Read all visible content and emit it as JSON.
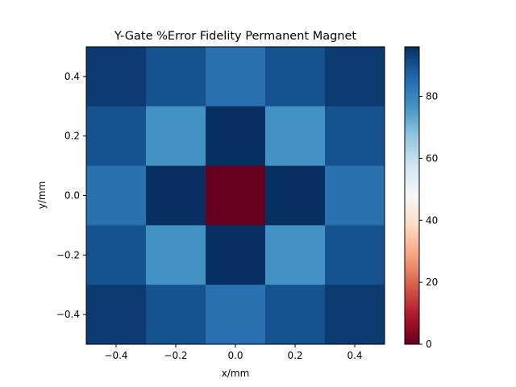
{
  "chart_data": {
    "type": "heatmap",
    "title": "Y-Gate %Error Fidelity Permanent Magnet",
    "xlabel": "x/mm",
    "ylabel": "y/mm",
    "x": [
      -0.4,
      -0.2,
      0.0,
      0.2,
      0.4
    ],
    "y": [
      -0.4,
      -0.2,
      0.0,
      0.2,
      0.4
    ],
    "xlim": [
      -0.5,
      0.5
    ],
    "ylim": [
      0.5,
      -0.5
    ],
    "xticks": [
      "−0.4",
      "−0.2",
      "0.0",
      "0.2",
      "0.4"
    ],
    "yticks": [
      "−0.4",
      "−0.2",
      "0.0",
      "0.2",
      "0.4"
    ],
    "values": [
      [
        94,
        90,
        84,
        90,
        94
      ],
      [
        90,
        77,
        96,
        77,
        90
      ],
      [
        84,
        96,
        0,
        96,
        84
      ],
      [
        90,
        77,
        96,
        77,
        90
      ],
      [
        94,
        90,
        84,
        90,
        94
      ]
    ],
    "colormap": "RdBu",
    "colorbar": {
      "range": [
        0,
        96
      ],
      "ticks": [
        0,
        20,
        40,
        60,
        80
      ]
    },
    "grid": false
  }
}
